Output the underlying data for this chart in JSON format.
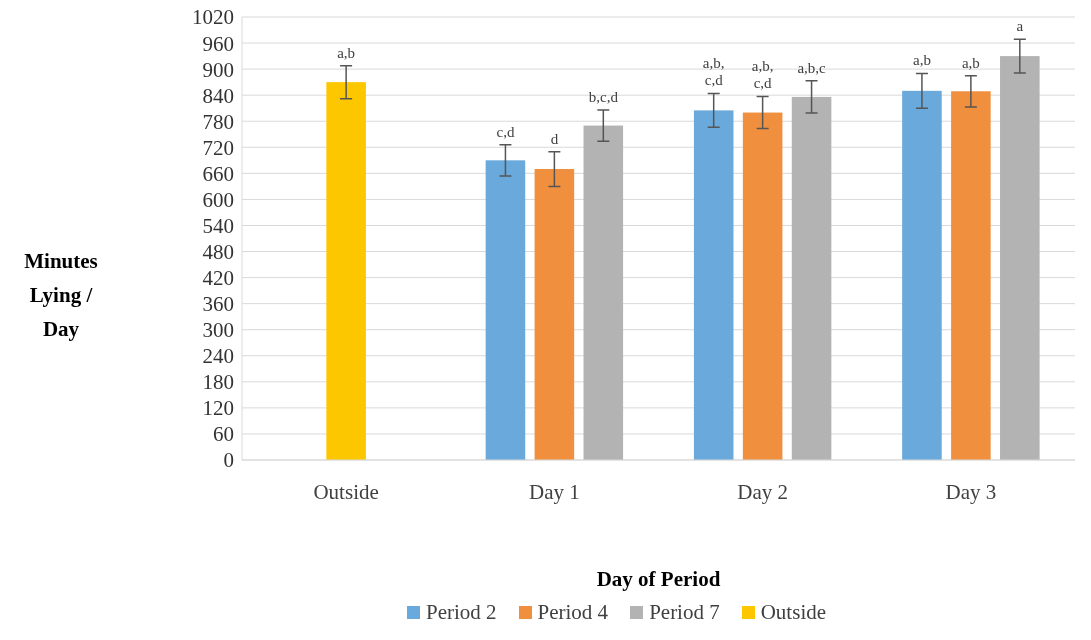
{
  "chart_data": {
    "type": "bar",
    "xlabel": "Day of Period",
    "ylabel": "Minutes Lying / Day",
    "categories": [
      "Outside",
      "Day 1",
      "Day 2",
      "Day 3"
    ],
    "series": [
      {
        "name": "Period 2",
        "color": "#6aa9db",
        "values": [
          null,
          690,
          805,
          850
        ],
        "errors": [
          null,
          36,
          39,
          40
        ],
        "value_labels": [
          null,
          "c,d",
          "a,b, c,d",
          "a,b"
        ]
      },
      {
        "name": "Period 4",
        "color": "#f0903f",
        "values": [
          null,
          670,
          800,
          849
        ],
        "errors": [
          null,
          40,
          37,
          36
        ],
        "value_labels": [
          null,
          "d",
          "a,b, c,d",
          "a,b"
        ]
      },
      {
        "name": "Period 7",
        "color": "#b3b3b3",
        "values": [
          null,
          770,
          836,
          930
        ],
        "errors": [
          null,
          36,
          37,
          39
        ],
        "value_labels": [
          null,
          "b,c,d",
          "a,b,c",
          "a"
        ]
      },
      {
        "name": "Outside",
        "color": "#fdc700",
        "values": [
          870,
          null,
          null,
          null
        ],
        "errors": [
          38,
          null,
          null,
          null
        ],
        "value_labels": [
          "a,b",
          null,
          null,
          null
        ]
      }
    ],
    "ylim": [
      0,
      1020
    ],
    "yticks": [
      0,
      60,
      120,
      180,
      240,
      300,
      360,
      420,
      480,
      540,
      600,
      660,
      720,
      780,
      840,
      900,
      960,
      1020
    ],
    "grid": "y",
    "legend": "bottom"
  }
}
